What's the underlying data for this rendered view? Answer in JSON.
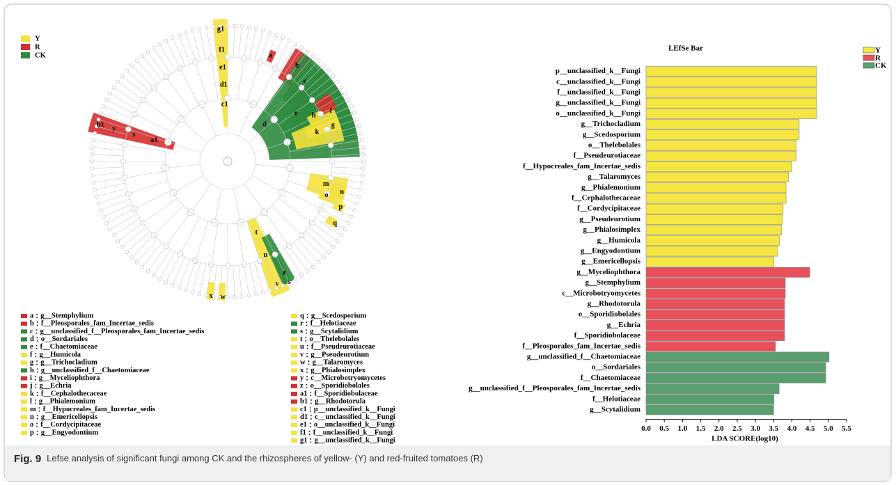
{
  "chart_data": {
    "type": "bar",
    "orientation": "horizontal",
    "title": "LEfSe Bar",
    "xlabel": "LDA SCORE(log10)",
    "legend": [
      {
        "name": "Y",
        "color": "#f5e642"
      },
      {
        "name": "R",
        "color": "#e8505b"
      },
      {
        "name": "CK",
        "color": "#5a9e6f"
      }
    ],
    "categories": [
      "p__unclassified_k__Fungi",
      "c__unclassified_k__Fungi",
      "f__unclassified_k__Fungi",
      "g__unclassified_k__Fungi",
      "o__unclassified_k__Fungi",
      "g__Trichocladium",
      "g__Scedosporium",
      "o__Thelebolales",
      "f__Pseudeurotiaceae",
      "f__Hypocreales_fam_Incertae_sedis",
      "g__Talaromyces",
      "g__Phialemonium",
      "f__Cephalothecaceae",
      "f__Cordycipitaceae",
      "g__Pseudeurotium",
      "g__Phialosimplex",
      "g__Humicola",
      "g__Engyodontium",
      "g__Emericellopsis",
      "g__Myceliophthora",
      "g__Stemphylium",
      "c__Microbotryomycetes",
      "g__Rhodotorula",
      "o__Sporidiobolales",
      "g__Echria",
      "f__Sporidiobolaceae",
      "f__Pleosporales_fam_Incertae_sedis",
      "g__unclassified_f__Chaetomiaceae",
      "o__Sordariales",
      "f__Chaetomiaceae",
      "g__unclassified_f__Pleosporales_fam_Incertae_sedis",
      "f__Helotiaceae",
      "g__Scytalidium"
    ],
    "values": [
      4.68,
      4.68,
      4.68,
      4.68,
      4.68,
      4.2,
      4.2,
      4.12,
      4.12,
      4.0,
      3.91,
      3.84,
      3.84,
      3.76,
      3.74,
      3.72,
      3.66,
      3.61,
      3.51,
      4.49,
      3.82,
      3.82,
      3.8,
      3.8,
      3.8,
      3.8,
      3.55,
      5.02,
      4.93,
      4.93,
      3.65,
      3.51,
      3.5
    ],
    "groups": [
      0,
      0,
      0,
      0,
      0,
      0,
      0,
      0,
      0,
      0,
      0,
      0,
      0,
      0,
      0,
      0,
      0,
      0,
      0,
      1,
      1,
      1,
      1,
      1,
      1,
      1,
      1,
      2,
      2,
      2,
      2,
      2,
      2
    ],
    "xlim": [
      0,
      5.5
    ],
    "xticks": [
      {
        "value": 0,
        "label": "0.0"
      },
      0.5,
      {
        "value": 1,
        "label": "1.0"
      },
      1.5,
      {
        "value": 2,
        "label": "2.0"
      },
      2.5,
      {
        "value": 3,
        "label": "3.0"
      },
      3.5,
      {
        "value": 4,
        "label": "4.0"
      },
      4.5,
      {
        "value": 5,
        "label": "5.0"
      },
      5.5
    ]
  },
  "cladogram": {
    "group_colors": [
      "#f5e23b",
      "#d62f2f",
      "#2e8b3e"
    ],
    "entries": [
      {
        "key": "a",
        "label": "g__Stemphylium",
        "group": 1
      },
      {
        "key": "b",
        "label": "f__Pleosporales_fam_Incertae_sedis",
        "group": 1
      },
      {
        "key": "c",
        "label": "g__unclassified_f__Pleosporales_fam_Incertae_sedis",
        "group": 2
      },
      {
        "key": "d",
        "label": "o__Sordariales",
        "group": 2
      },
      {
        "key": "e",
        "label": "f__Chaetomiaceae",
        "group": 2
      },
      {
        "key": "f",
        "label": "g__Humicola",
        "group": 0
      },
      {
        "key": "g",
        "label": "g__Trichocladium",
        "group": 0
      },
      {
        "key": "h",
        "label": "g__unclassified_f__Chaetomiaceae",
        "group": 2
      },
      {
        "key": "i",
        "label": "g__Myceliophthora",
        "group": 1
      },
      {
        "key": "j",
        "label": "g__Echria",
        "group": 1
      },
      {
        "key": "k",
        "label": "f__Cephalothecaceae",
        "group": 0
      },
      {
        "key": "l",
        "label": "g__Phialemonium",
        "group": 0
      },
      {
        "key": "m",
        "label": "f__Hypocreales_fam_Incertae_sedis",
        "group": 0
      },
      {
        "key": "n",
        "label": "g__Emericellopsis",
        "group": 0
      },
      {
        "key": "o",
        "label": "f__Cordycipitaceae",
        "group": 0
      },
      {
        "key": "p",
        "label": "g__Engyodontium",
        "group": 0
      },
      {
        "key": "q",
        "label": "g__Scedosporium",
        "group": 0
      },
      {
        "key": "r",
        "label": "f__Helotiaceae",
        "group": 2
      },
      {
        "key": "s",
        "label": "g__Scytalidium",
        "group": 2
      },
      {
        "key": "t",
        "label": "o__Thelebolales",
        "group": 0
      },
      {
        "key": "u",
        "label": "f__Pseudeurotiaceae",
        "group": 0
      },
      {
        "key": "v",
        "label": "g__Pseudeurotium",
        "group": 0
      },
      {
        "key": "w",
        "label": "g__Talaromyces",
        "group": 0
      },
      {
        "key": "x",
        "label": "g__Phialosimplex",
        "group": 0
      },
      {
        "key": "y",
        "label": "c__Microbotryomycetes",
        "group": 1
      },
      {
        "key": "z",
        "label": "o__Sporidiobolales",
        "group": 1
      },
      {
        "key": "a1",
        "label": "f__Sporidiobolaceae",
        "group": 1
      },
      {
        "key": "b1",
        "label": "g__Rhodotorula",
        "group": 1
      },
      {
        "key": "c1",
        "label": "p__unclassified_k__Fungi",
        "group": 0
      },
      {
        "key": "d1",
        "label": "c__unclassified_k__Fungi",
        "group": 0
      },
      {
        "key": "e1",
        "label": "o__unclassified_k__Fungi",
        "group": 0
      },
      {
        "key": "f1",
        "label": "f__unclassified_k__Fungi",
        "group": 0
      },
      {
        "key": "g1",
        "label": "g__unclassified_k__Fungi",
        "group": 0
      }
    ]
  },
  "caption": {
    "label": "Fig. 9",
    "text": "Lefse analysis of significant fungi among CK and the rhizospheres of yellow- (Y) and red-fruited tomatoes (R)"
  }
}
